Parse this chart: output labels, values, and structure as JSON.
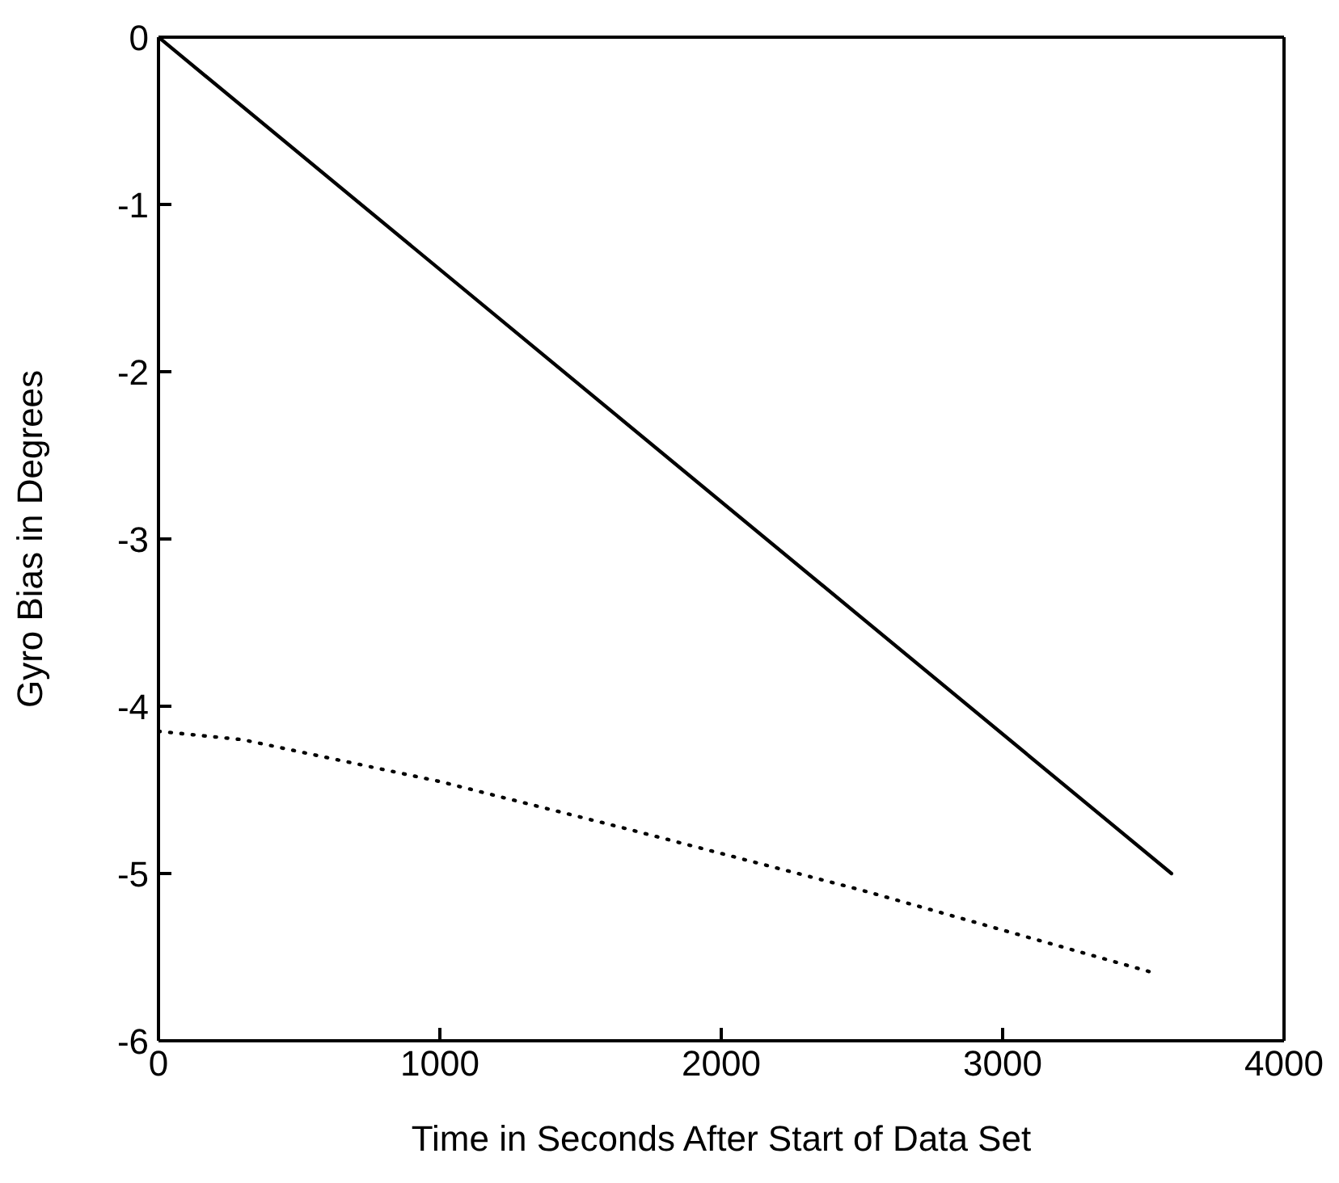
{
  "chart_data": {
    "type": "line",
    "xlabel": "Time in Seconds After Start of Data Set",
    "ylabel": "Gyro Bias in Degrees",
    "xlim": [
      0,
      4000
    ],
    "xticks": [
      0,
      1000,
      2000,
      3000,
      4000
    ],
    "ylim": [
      -6,
      0
    ],
    "yticks": [
      -6,
      -5,
      -4,
      -3,
      -2,
      -1,
      0
    ],
    "grid": false,
    "legend": false,
    "marker": "none",
    "series": [
      {
        "color": "#000000",
        "line_style": "solid",
        "x": [
          0,
          3600
        ],
        "values": [
          0,
          -5
        ]
      },
      {
        "color": "#000000",
        "line_style": "dotted",
        "x": [
          0,
          300,
          1000,
          1658,
          2500,
          3550
        ],
        "values": [
          -4.15,
          -4.2,
          -4.45,
          -4.73,
          -5.1,
          -5.6
        ]
      }
    ]
  }
}
